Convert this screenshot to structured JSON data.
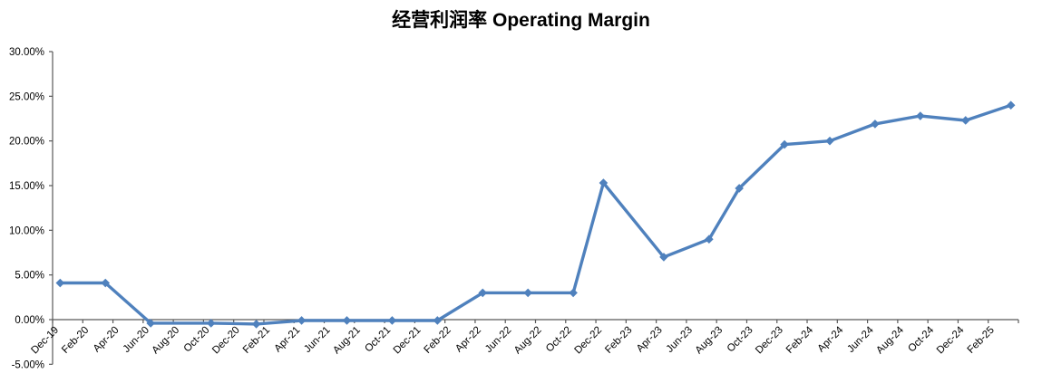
{
  "chart_data": {
    "type": "line",
    "title": "经营利润率 Operating Margin",
    "legend": "none",
    "gridlines": "off",
    "background_color": "#ffffff",
    "series": [
      {
        "name": "Operating Margin",
        "unit": "percent",
        "points": [
          {
            "date": "Dec-19",
            "month_index": 0,
            "value": 4.1
          },
          {
            "date": "Mar-20",
            "month_index": 3,
            "value": 4.1
          },
          {
            "date": "Jun-20",
            "month_index": 6,
            "value": -0.4
          },
          {
            "date": "Oct-20",
            "month_index": 10,
            "value": -0.4
          },
          {
            "date": "Jan-21",
            "month_index": 13,
            "value": -0.5
          },
          {
            "date": "Apr-21",
            "month_index": 16,
            "value": -0.1
          },
          {
            "date": "Jul-21",
            "month_index": 19,
            "value": -0.1
          },
          {
            "date": "Oct-21",
            "month_index": 22,
            "value": -0.1
          },
          {
            "date": "Jan-22",
            "month_index": 25,
            "value": -0.1
          },
          {
            "date": "Apr-22",
            "month_index": 28,
            "value": 3.0
          },
          {
            "date": "Jul-22",
            "month_index": 31,
            "value": 3.0
          },
          {
            "date": "Oct-22",
            "month_index": 34,
            "value": 3.0
          },
          {
            "date": "Dec-22",
            "month_index": 36,
            "value": 15.3
          },
          {
            "date": "Apr-23",
            "month_index": 40,
            "value": 7.0
          },
          {
            "date": "Jul-23",
            "month_index": 43,
            "value": 9.0
          },
          {
            "date": "Sep-23",
            "month_index": 45,
            "value": 14.7
          },
          {
            "date": "Dec-23",
            "month_index": 48,
            "value": 19.6
          },
          {
            "date": "Mar-24",
            "month_index": 51,
            "value": 20.0
          },
          {
            "date": "Jun-24",
            "month_index": 54,
            "value": 21.9
          },
          {
            "date": "Sep-24",
            "month_index": 57,
            "value": 22.8
          },
          {
            "date": "Dec-24",
            "month_index": 60,
            "value": 22.3
          },
          {
            "date": "Mar-25",
            "month_index": 63,
            "value": 24.0
          }
        ]
      }
    ],
    "x_axis": {
      "total_months": 64,
      "tick_interval_months": 2,
      "label_rotation_deg": -45,
      "tick_labels": [
        "Dec-19",
        "Feb-20",
        "Apr-20",
        "Jun-20",
        "Aug-20",
        "Oct-20",
        "Dec-20",
        "Feb-21",
        "Apr-21",
        "Jun-21",
        "Aug-21",
        "Oct-21",
        "Dec-21",
        "Feb-22",
        "Apr-22",
        "Jun-22",
        "Aug-22",
        "Oct-22",
        "Dec-22",
        "Feb-23",
        "Apr-23",
        "Jun-23",
        "Aug-23",
        "Oct-23",
        "Dec-23",
        "Feb-24",
        "Apr-24",
        "Jun-24",
        "Aug-24",
        "Oct-24",
        "Dec-24",
        "Feb-25"
      ]
    },
    "y_axis": {
      "min": -5,
      "max": 30,
      "step": 5,
      "tick_values": [
        30,
        25,
        20,
        15,
        10,
        5,
        0,
        -5
      ],
      "tick_labels": [
        "30.00%",
        "25.00%",
        "20.00%",
        "15.00%",
        "10.00%",
        "5.00%",
        "0.00%",
        "-5.00%"
      ]
    },
    "style": {
      "line_color": "#4F81BD",
      "marker_shape": "diamond",
      "axis_color": "#595959",
      "label_color": "#000000"
    }
  }
}
